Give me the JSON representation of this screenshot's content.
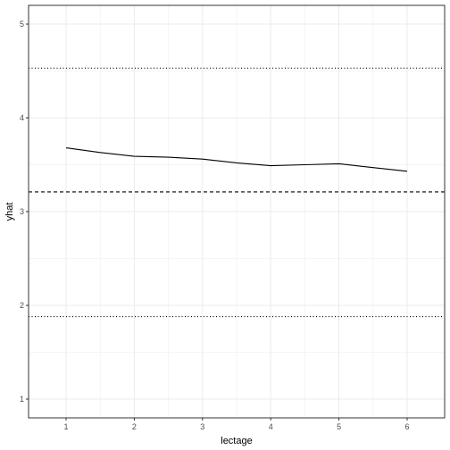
{
  "chart_data": {
    "type": "line",
    "title": "",
    "xlabel": "lectage",
    "ylabel": "yhat",
    "xlim": [
      0.45,
      6.55
    ],
    "ylim": [
      0.8,
      5.2
    ],
    "x_ticks": [
      1,
      2,
      3,
      4,
      5,
      6
    ],
    "y_ticks": [
      1,
      2,
      3,
      4,
      5
    ],
    "y_minor_ticks": [
      1.5,
      2.5,
      3.5,
      4.5
    ],
    "grid": true,
    "legend": "none",
    "series": [
      {
        "x": [
          1,
          1.5,
          2,
          2.5,
          3,
          3.5,
          4,
          4.5,
          5,
          5.5,
          6
        ],
        "values": [
          3.68,
          3.63,
          3.59,
          3.58,
          3.56,
          3.52,
          3.49,
          3.5,
          3.51,
          3.47,
          3.43
        ],
        "color": "#000000"
      }
    ],
    "reference_lines": [
      {
        "y": 3.21,
        "style": "dashed",
        "color": "#000000"
      },
      {
        "y": 4.53,
        "style": "dotted",
        "color": "#000000"
      },
      {
        "y": 1.88,
        "style": "dotted",
        "color": "#000000"
      }
    ],
    "colors": {
      "grid": "#ebebeb",
      "panel_border": "#333333",
      "tick_text": "#4d4d4d"
    }
  }
}
